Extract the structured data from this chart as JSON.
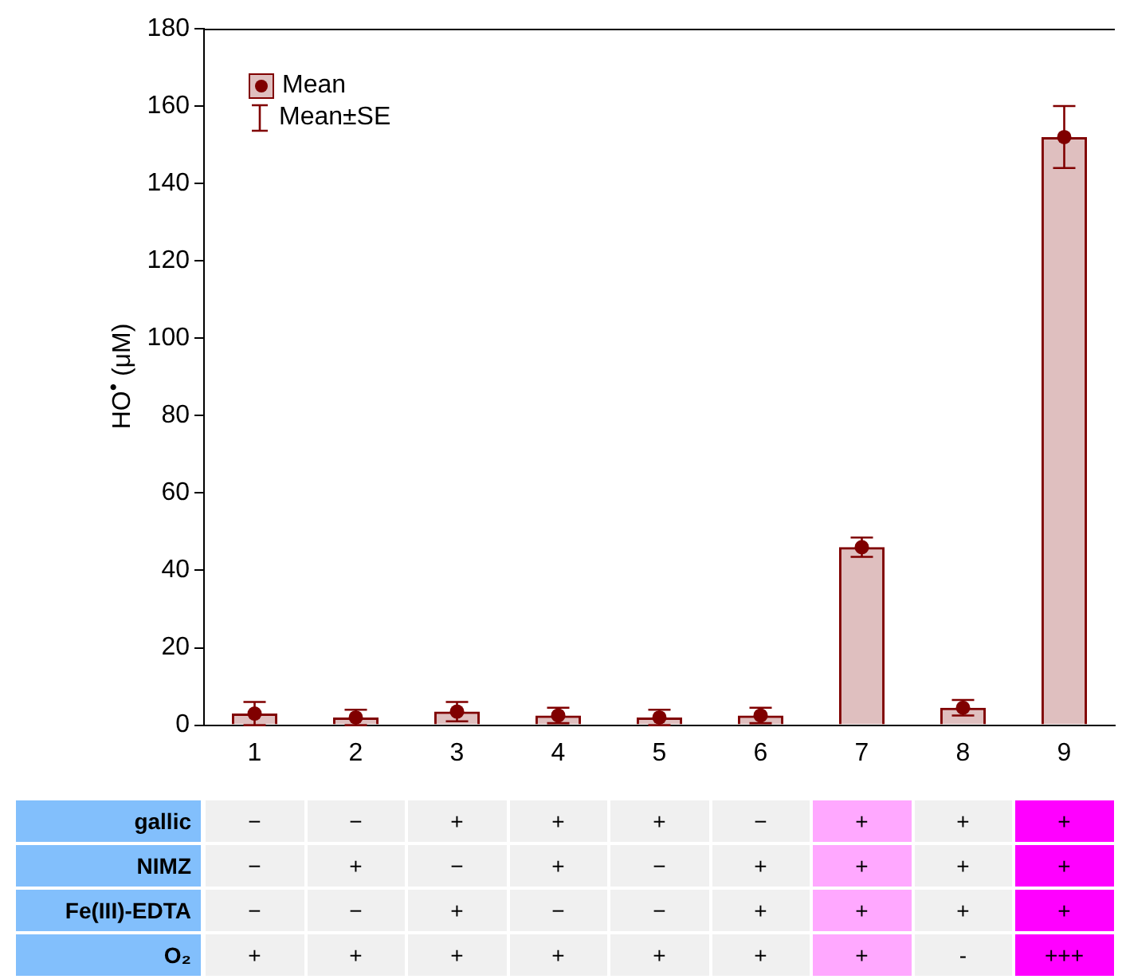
{
  "chart_data": {
    "type": "bar",
    "ylabel": "HO$^{•}$ (μM)",
    "categories": [
      "1",
      "2",
      "3",
      "4",
      "5",
      "6",
      "7",
      "8",
      "9"
    ],
    "series": [
      {
        "name": "Mean",
        "color": "#800000",
        "values": [
          3,
          2,
          3.5,
          2.5,
          2,
          2.5,
          46,
          4.5,
          152
        ],
        "errors": [
          3,
          2,
          2.5,
          2,
          2,
          2,
          2.5,
          2,
          8
        ]
      },
      {
        "type": "scatter",
        "color": "#800000",
        "x": [
          "1",
          "2",
          "3",
          "4",
          "5",
          "6",
          "7",
          "8",
          "9"
        ],
        "values": [
          3,
          2,
          3.5,
          2.5,
          2,
          2.5,
          46,
          4.5,
          152
        ]
      }
    ],
    "ylim": [
      0,
      180
    ],
    "yticks": [
      0,
      20,
      40,
      60,
      80,
      100,
      120,
      140,
      160,
      180
    ],
    "grid": false,
    "legend": "top left",
    "marker": "circle",
    "annotations": [
      "Mean±SE",
      "gallic",
      "−",
      "−",
      "+",
      "+",
      "+",
      "−",
      "+",
      "+",
      "+",
      "NIMZ",
      "−",
      "+",
      "−",
      "+",
      "−",
      "+",
      "+",
      "+",
      "+",
      "Fe(III)-EDTA",
      "−",
      "−",
      "+",
      "−",
      "−",
      "+",
      "+",
      "+",
      "+",
      "O₂",
      "+",
      "+",
      "+",
      "+",
      "+",
      "+",
      "+",
      "-",
      "+++"
    ]
  }
}
